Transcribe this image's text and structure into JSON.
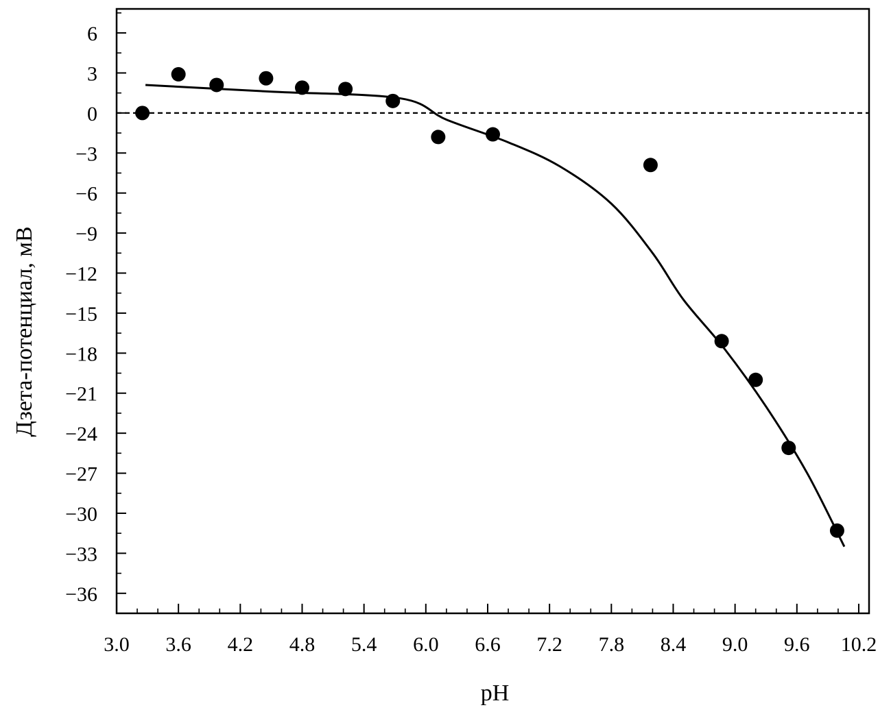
{
  "chart_data": {
    "type": "scatter",
    "title": "",
    "xlabel": "pH",
    "ylabel": "Дзета-потенциал, мВ",
    "xlim": [
      3.0,
      10.3
    ],
    "ylim": [
      -37.5,
      7.8
    ],
    "x_ticks": [
      "3.0",
      "3.6",
      "4.2",
      "4.8",
      "5.4",
      "6.0",
      "6.6",
      "7.2",
      "7.8",
      "8.4",
      "9.0",
      "9.6",
      "10.2"
    ],
    "y_ticks": [
      "6",
      "3",
      "0",
      "−3",
      "−6",
      "−9",
      "−12",
      "−15",
      "−18",
      "−21",
      "−24",
      "−27",
      "−30",
      "−33",
      "−36"
    ],
    "x_tick_values": [
      3.0,
      3.6,
      4.2,
      4.8,
      5.4,
      6.0,
      6.6,
      7.2,
      7.8,
      8.4,
      9.0,
      9.6,
      10.2
    ],
    "y_tick_values": [
      6,
      3,
      0,
      -3,
      -6,
      -9,
      -12,
      -15,
      -18,
      -21,
      -24,
      -27,
      -30,
      -33,
      -36
    ],
    "grid": false,
    "legend": "none",
    "reference_line": {
      "y": 0,
      "style": "dashed"
    },
    "series": [
      {
        "kind": "points",
        "x": [
          3.25,
          3.6,
          3.97,
          4.45,
          4.8,
          5.22,
          5.68,
          6.12,
          6.65,
          8.18,
          8.87,
          9.2,
          9.52,
          9.99
        ],
        "y": [
          0.0,
          2.9,
          2.1,
          2.6,
          1.9,
          1.8,
          0.9,
          -1.8,
          -1.6,
          -3.9,
          -17.1,
          -20.0,
          -25.1,
          -31.3
        ]
      },
      {
        "kind": "line",
        "x": [
          3.28,
          4.5,
          5.75,
          6.2,
          6.8,
          7.3,
          7.8,
          8.2,
          8.5,
          8.9,
          9.3,
          9.7,
          10.06
        ],
        "y": [
          2.1,
          1.6,
          1.1,
          -0.5,
          -2.2,
          -4.0,
          -6.8,
          -10.5,
          -14.0,
          -17.7,
          -22.0,
          -27.0,
          -32.5
        ]
      }
    ],
    "colors": {
      "marks": "#000000",
      "background": "#ffffff"
    }
  }
}
